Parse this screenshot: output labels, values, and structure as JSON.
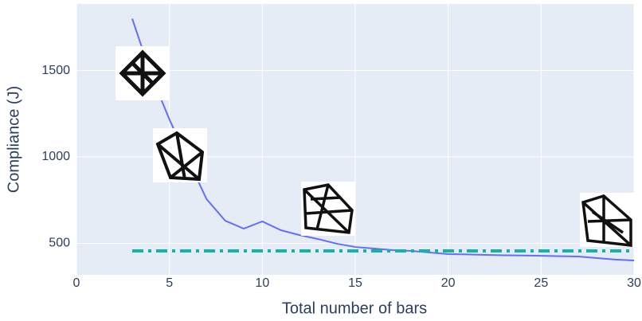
{
  "chart_data": {
    "type": "line",
    "xlabel": "Total number of bars",
    "ylabel": "Compliance (J)",
    "x": [
      3,
      4,
      5,
      6,
      7,
      8,
      9,
      10,
      11,
      12,
      13,
      14,
      15,
      16,
      17,
      18,
      19,
      20,
      21,
      22,
      23,
      24,
      25,
      26,
      27,
      28,
      29,
      30
    ],
    "series": [
      {
        "color": "#636efa",
        "values": [
          1800,
          1480,
          1217,
          985,
          756,
          631,
          585,
          627,
          576,
          548,
          525,
          498,
          479,
          470,
          461,
          456,
          447,
          438,
          436,
          433,
          431,
          430,
          428,
          426,
          424,
          415,
          406,
          401
        ]
      },
      {
        "color": "#17b2a7",
        "dash": "dashdot",
        "values": [
          456,
          456,
          456,
          456,
          456,
          456,
          456,
          456,
          456,
          456,
          456,
          456,
          456,
          456,
          456,
          456,
          456,
          456,
          456,
          456,
          456,
          456,
          456,
          456,
          456,
          456,
          456,
          456
        ]
      }
    ],
    "xlim": [
      0,
      30
    ],
    "xticks": [
      0,
      5,
      10,
      15,
      20,
      25,
      30
    ],
    "ylim": [
      318,
      1885
    ],
    "yticks": [
      500,
      1000,
      1500
    ],
    "grid": true
  }
}
